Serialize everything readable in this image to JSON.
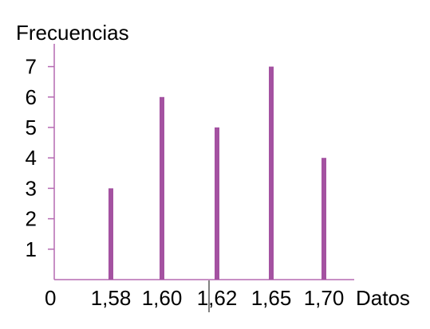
{
  "chart_data": {
    "type": "bar",
    "categories": [
      "1,58",
      "1,60",
      "1,62",
      "1,65",
      "1,70"
    ],
    "values": [
      3,
      6,
      5,
      7,
      4
    ],
    "xlabel": "Datos",
    "ylabel": "Frecuencias",
    "ylim": [
      0,
      8
    ],
    "yticks": [
      "1",
      "2",
      "3",
      "4",
      "5",
      "6",
      "7"
    ],
    "origin_label": "0",
    "grid": false,
    "colors": {
      "axis": "#b56ab2",
      "bar": "#a452a1",
      "text": "#000000"
    }
  }
}
